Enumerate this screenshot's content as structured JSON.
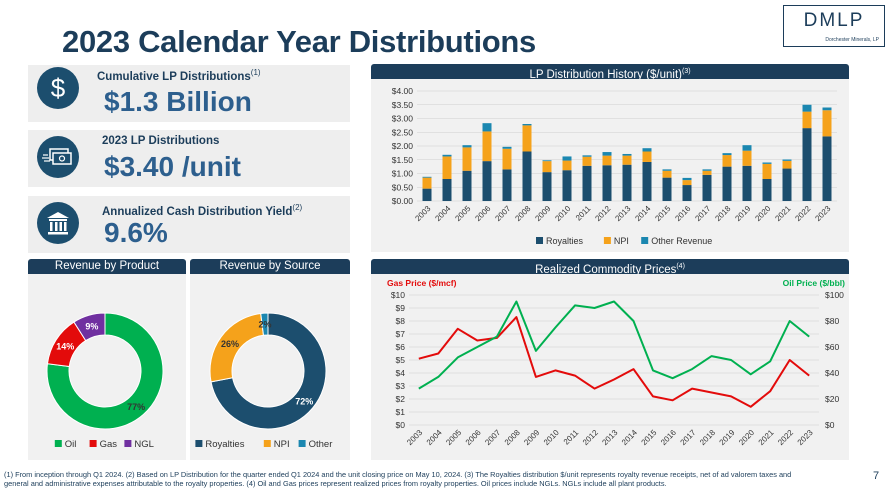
{
  "title": "2023 Calendar Year Distributions",
  "logo": {
    "text": "DMLP",
    "subtext": "Dorchester Minerals, LP"
  },
  "kpis": [
    {
      "label": "Cumulative LP Distributions",
      "sup": "(1)",
      "value": "$1.3 Billion",
      "icon": "dollar-icon"
    },
    {
      "label": "2023 LP Distributions",
      "sup": "",
      "value": "$3.40 /unit",
      "icon": "cash-icon"
    },
    {
      "label": "Annualized Cash Distribution Yield",
      "sup": "(2)",
      "value": "9.6%",
      "icon": "bank-icon"
    }
  ],
  "colors": {
    "navy": "#1c3d5a",
    "royalties": "#1c4e6e",
    "npi": "#f5a21b",
    "other": "#1b87b0",
    "oil": "#00b050",
    "gas": "#e30b0b",
    "ngl": "#7030a0"
  },
  "chart_data": [
    {
      "type": "bar",
      "stacked": true,
      "title": "LP Distribution History ($/unit)",
      "title_sup": "(3)",
      "categories": [
        "2003",
        "2004",
        "2005",
        "2006",
        "2007",
        "2008",
        "2009",
        "2010",
        "2011",
        "2012",
        "2013",
        "2014",
        "2015",
        "2016",
        "2017",
        "2018",
        "2019",
        "2020",
        "2021",
        "2022",
        "2023"
      ],
      "series": [
        {
          "name": "Royalties",
          "values": [
            0.45,
            0.8,
            1.1,
            1.45,
            1.15,
            1.8,
            1.05,
            1.12,
            1.28,
            1.3,
            1.32,
            1.42,
            0.85,
            0.58,
            0.95,
            1.25,
            1.28,
            0.8,
            1.18,
            2.65,
            2.35
          ]
        },
        {
          "name": "NPI",
          "values": [
            0.4,
            0.82,
            0.85,
            1.08,
            0.75,
            0.95,
            0.4,
            0.35,
            0.33,
            0.35,
            0.33,
            0.38,
            0.25,
            0.18,
            0.15,
            0.42,
            0.55,
            0.55,
            0.28,
            0.6,
            0.95
          ]
        },
        {
          "name": "Other Revenue",
          "values": [
            0.03,
            0.06,
            0.08,
            0.3,
            0.07,
            0.05,
            0.03,
            0.15,
            0.05,
            0.13,
            0.06,
            0.12,
            0.05,
            0.08,
            0.05,
            0.07,
            0.2,
            0.05,
            0.05,
            0.25,
            0.1
          ]
        }
      ],
      "y_ticks": [
        "$0.00",
        "$0.50",
        "$1.00",
        "$1.50",
        "$2.00",
        "$2.50",
        "$3.00",
        "$3.50",
        "$4.00"
      ],
      "ylim": [
        0,
        4
      ],
      "legend": "bottom"
    },
    {
      "type": "pie",
      "donut": true,
      "title": "Revenue by Product",
      "labels": [
        "Oil",
        "Gas",
        "NGL"
      ],
      "values": [
        77,
        14,
        9
      ],
      "data_labels": [
        "77%",
        "14%",
        "9%"
      ],
      "legend": "bottom"
    },
    {
      "type": "pie",
      "donut": true,
      "title": "Revenue by Source",
      "labels": [
        "Royalties",
        "NPI",
        "Other"
      ],
      "values": [
        72,
        26,
        2
      ],
      "data_labels": [
        "72%",
        "26%",
        "2%"
      ],
      "legend": "bottom"
    },
    {
      "type": "line",
      "title": "Realized Commodity Prices",
      "title_sup": "(4)",
      "categories": [
        "2003",
        "2004",
        "2005",
        "2006",
        "2007",
        "2008",
        "2009",
        "2010",
        "2011",
        "2012",
        "2013",
        "2014",
        "2015",
        "2016",
        "2017",
        "2018",
        "2019",
        "2020",
        "2021",
        "2022",
        "2023"
      ],
      "left_axis_title": "Gas Price ($/mcf)",
      "right_axis_title": "Oil Price ($/bbl)",
      "left_ticks": [
        "$0",
        "$1",
        "$2",
        "$3",
        "$4",
        "$5",
        "$6",
        "$7",
        "$8",
        "$9",
        "$10"
      ],
      "right_ticks": [
        "$0",
        "$20",
        "$40",
        "$60",
        "$80",
        "$100"
      ],
      "left_ylim": [
        0,
        10
      ],
      "right_ylim": [
        0,
        100
      ],
      "series": [
        {
          "name": "Gas Price",
          "axis": "left",
          "values": [
            5.1,
            5.5,
            7.4,
            6.5,
            6.7,
            8.3,
            3.7,
            4.2,
            3.8,
            2.8,
            3.5,
            4.3,
            2.2,
            1.9,
            2.8,
            2.5,
            2.2,
            1.4,
            2.6,
            5.0,
            3.8
          ]
        },
        {
          "name": "Oil Price",
          "axis": "right",
          "values": [
            28,
            37,
            52,
            60,
            68,
            95,
            57,
            75,
            92,
            90,
            95,
            80,
            42,
            36,
            43,
            53,
            50,
            39,
            49,
            80,
            68
          ]
        }
      ],
      "legend": "bottom"
    }
  ],
  "footnote": "(1) From inception through Q1 2024. (2) Based on LP Distribution for the quarter ended Q1 2024 and the unit closing price on May 10, 2024. (3) The Royalties distribution $/unit represents royalty revenue receipts, net of ad valorem taxes and general and administrative expenses attributable to the royalty properties. (4) Oil and Gas prices represent realized prices from royalty properties. Oil prices include NGLs. NGLs include all plant products.",
  "page_number": "7"
}
